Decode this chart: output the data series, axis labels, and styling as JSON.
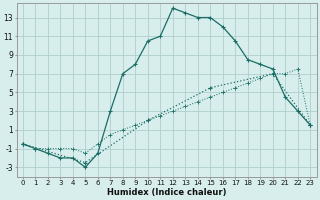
{
  "xlabel": "Humidex (Indice chaleur)",
  "bg_color": "#d8eeed",
  "grid_color": "#b0cece",
  "line_color": "#1a6e65",
  "xlim": [
    -0.5,
    23.5
  ],
  "ylim": [
    -4,
    14.5
  ],
  "xticks": [
    0,
    1,
    2,
    3,
    4,
    5,
    6,
    7,
    8,
    9,
    10,
    11,
    12,
    13,
    14,
    15,
    16,
    17,
    18,
    19,
    20,
    21,
    22,
    23
  ],
  "yticks": [
    -3,
    -1,
    1,
    3,
    5,
    7,
    9,
    11,
    13
  ],
  "curve_x": [
    0,
    1,
    2,
    3,
    4,
    5,
    6,
    7,
    8,
    9,
    10,
    11,
    12,
    13,
    14,
    15,
    16,
    17,
    18,
    19,
    20,
    21,
    22,
    23
  ],
  "curve_y": [
    -0.5,
    -1,
    -1.5,
    -2,
    -2,
    -3,
    -1.5,
    3,
    7,
    8,
    10.5,
    11,
    14,
    13.5,
    13,
    13,
    12,
    10.5,
    8.5,
    8,
    7.5,
    4.5,
    3,
    1.5
  ],
  "diag_x": [
    0,
    5,
    10,
    15,
    20,
    23
  ],
  "diag_y": [
    -0.5,
    -2.5,
    2,
    5.5,
    7,
    1.5
  ],
  "flat_x": [
    0,
    1,
    2,
    3,
    4,
    5,
    6,
    7,
    8,
    9,
    10,
    11,
    12,
    13,
    14,
    15,
    16,
    17,
    18,
    19,
    20,
    21,
    22,
    23
  ],
  "flat_y": [
    -0.5,
    -1,
    -1,
    -1,
    -1,
    -1.5,
    -0.5,
    0.5,
    1,
    1.5,
    2,
    2.5,
    3,
    3.5,
    4,
    4.5,
    5,
    5.5,
    6,
    6.5,
    7,
    7,
    7.5,
    1.5
  ]
}
